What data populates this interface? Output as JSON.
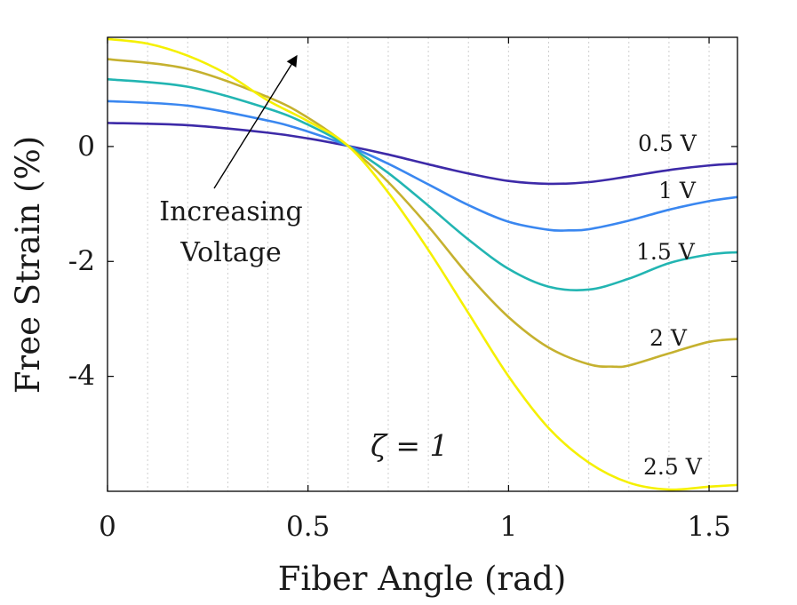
{
  "chart_data": {
    "type": "line",
    "title": "",
    "xlabel": "Fiber Angle (rad)",
    "ylabel": "Free Strain (%)",
    "xlim": [
      0,
      1.5708
    ],
    "ylim": [
      -6.0,
      1.9
    ],
    "xticks": [
      0,
      0.5,
      1,
      1.5
    ],
    "xtick_labels": [
      "0",
      "0.5",
      "1",
      "1.5"
    ],
    "yticks": [
      0,
      -2,
      -4
    ],
    "ytick_labels": [
      "0",
      "-2",
      "-4"
    ],
    "grid": "vertical dotted",
    "series": [
      {
        "name": "0.5 V",
        "label": "0.5 V",
        "color": "#3d2aa8",
        "x": [
          0,
          0.2,
          0.4,
          0.5,
          0.6,
          0.7,
          0.8,
          0.9,
          1.0,
          1.1,
          1.2,
          1.3,
          1.4,
          1.5,
          1.5708
        ],
        "y": [
          0.41,
          0.37,
          0.24,
          0.14,
          0.01,
          -0.14,
          -0.31,
          -0.47,
          -0.6,
          -0.65,
          -0.62,
          -0.52,
          -0.41,
          -0.33,
          -0.3
        ]
      },
      {
        "name": "1 V",
        "label": "1 V",
        "color": "#3a87f0",
        "x": [
          0,
          0.2,
          0.4,
          0.5,
          0.6,
          0.7,
          0.8,
          0.9,
          1.0,
          1.1,
          1.15,
          1.2,
          1.3,
          1.4,
          1.5,
          1.5708
        ],
        "y": [
          0.79,
          0.71,
          0.45,
          0.26,
          0.01,
          -0.3,
          -0.66,
          -1.02,
          -1.31,
          -1.45,
          -1.46,
          -1.44,
          -1.29,
          -1.1,
          -0.95,
          -0.88
        ]
      },
      {
        "name": "1.5 V",
        "label": "1.5 V",
        "color": "#22b5b2",
        "x": [
          0,
          0.2,
          0.4,
          0.5,
          0.6,
          0.7,
          0.8,
          0.9,
          1.0,
          1.1,
          1.2,
          1.3,
          1.4,
          1.5,
          1.5708
        ],
        "y": [
          1.17,
          1.04,
          0.66,
          0.38,
          0.01,
          -0.46,
          -1.03,
          -1.62,
          -2.13,
          -2.44,
          -2.49,
          -2.3,
          -2.03,
          -1.88,
          -1.84
        ]
      },
      {
        "name": "2 V",
        "label": "2 V",
        "color": "#c5b12f",
        "x": [
          0,
          0.2,
          0.4,
          0.5,
          0.6,
          0.7,
          0.8,
          0.9,
          1.0,
          1.1,
          1.2,
          1.26,
          1.3,
          1.4,
          1.5,
          1.5708
        ],
        "y": [
          1.52,
          1.35,
          0.86,
          0.5,
          0.01,
          -0.62,
          -1.39,
          -2.24,
          -2.97,
          -3.5,
          -3.79,
          -3.83,
          -3.81,
          -3.6,
          -3.4,
          -3.35
        ]
      },
      {
        "name": "2.5 V",
        "label": "2.5 V",
        "color": "#f5f000",
        "x": [
          0,
          0.1,
          0.2,
          0.3,
          0.4,
          0.5,
          0.6,
          0.7,
          0.8,
          0.9,
          1.0,
          1.1,
          1.2,
          1.3,
          1.4,
          1.5,
          1.5708
        ],
        "y": [
          1.87,
          1.79,
          1.58,
          1.25,
          0.8,
          0.44,
          0.01,
          -0.8,
          -1.8,
          -2.9,
          -4.0,
          -4.9,
          -5.5,
          -5.85,
          -5.97,
          -5.92,
          -5.89
        ]
      }
    ],
    "annotations": [
      {
        "text_lines": [
          "Increasing",
          "Voltage"
        ],
        "arrow_from": [
          0.11,
          -0.2
        ],
        "arrow_to": [
          0.47,
          1.67
        ]
      },
      {
        "text": "ζ = 1",
        "at": [
          0.65,
          -5.2
        ]
      }
    ]
  }
}
